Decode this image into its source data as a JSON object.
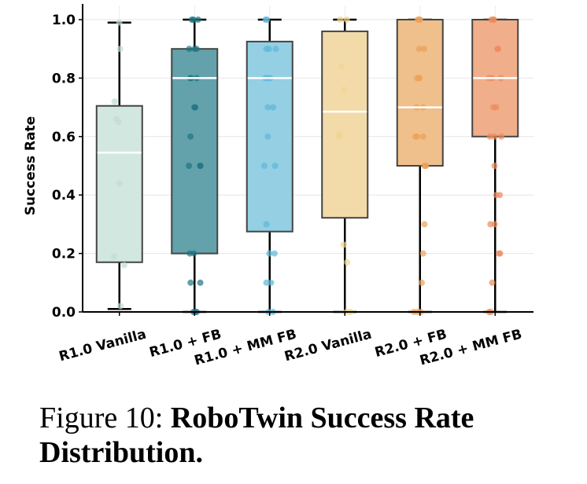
{
  "chart_data": {
    "type": "box",
    "title": "",
    "xlabel": "",
    "ylabel": "Success Rate",
    "ylim": [
      0,
      1.0
    ],
    "yticks": [
      "0.0",
      "0.2",
      "0.4",
      "0.6",
      "0.8",
      "1.0"
    ],
    "grid": true,
    "categories": [
      "R1.0 Vanilla",
      "R1.0 + FB",
      "R1.0 + MM FB",
      "R2.0 Vanilla",
      "R2.0 + FB",
      "R2.0 + MM FB"
    ],
    "boxes": [
      {
        "q1": 0.17,
        "median": 0.545,
        "q3": 0.705,
        "whisker_low": 0.01,
        "whisker_high": 0.99,
        "fill": "#d2e7df",
        "point_color": "#bfddd0",
        "points": [
          0.99,
          0.9,
          0.72,
          0.66,
          0.65,
          0.44,
          0.19,
          0.16,
          0.02
        ]
      },
      {
        "q1": 0.2,
        "median": 0.8,
        "q3": 0.9,
        "whisker_low": 0.0,
        "whisker_high": 1.0,
        "fill": "#64a2ab",
        "point_color": "#1d7583",
        "points": [
          1.0,
          1.0,
          1.0,
          0.9,
          0.9,
          0.9,
          0.8,
          0.8,
          0.8,
          0.7,
          0.7,
          0.6,
          0.5,
          0.5,
          0.5,
          0.2,
          0.2,
          0.1,
          0.1,
          0.0,
          0.0,
          0.0
        ]
      },
      {
        "q1": 0.275,
        "median": 0.8,
        "q3": 0.925,
        "whisker_low": 0.0,
        "whisker_high": 1.0,
        "fill": "#95cfe3",
        "point_color": "#5cb8d8",
        "points": [
          1.0,
          1.0,
          0.9,
          0.9,
          0.9,
          0.8,
          0.8,
          0.8,
          0.7,
          0.7,
          0.6,
          0.5,
          0.5,
          0.3,
          0.2,
          0.2,
          0.1,
          0.1,
          0.0,
          0.0
        ]
      },
      {
        "q1": 0.322,
        "median": 0.685,
        "q3": 0.96,
        "whisker_low": 0.0,
        "whisker_high": 1.0,
        "fill": "#f2dba9",
        "point_color": "#f0d591",
        "points": [
          1.0,
          1.0,
          0.84,
          0.76,
          0.61,
          0.6,
          0.23,
          0.17,
          0.0,
          0.0
        ]
      },
      {
        "q1": 0.5,
        "median": 0.7,
        "q3": 1.0,
        "whisker_low": 0.0,
        "whisker_high": 1.0,
        "fill": "#efc08b",
        "point_color": "#eba15a",
        "points": [
          1.0,
          1.0,
          1.0,
          0.9,
          0.9,
          0.8,
          0.8,
          0.8,
          0.7,
          0.7,
          0.6,
          0.6,
          0.6,
          0.5,
          0.5,
          0.5,
          0.3,
          0.2,
          0.1,
          0.0,
          0.0,
          0.0
        ]
      },
      {
        "q1": 0.6,
        "median": 0.8,
        "q3": 1.0,
        "whisker_low": 0.0,
        "whisker_high": 1.0,
        "fill": "#f0ae8b",
        "point_color": "#eb8a5d",
        "points": [
          1.0,
          1.0,
          1.0,
          0.9,
          0.9,
          0.8,
          0.8,
          0.8,
          0.7,
          0.7,
          0.6,
          0.6,
          0.6,
          0.5,
          0.4,
          0.4,
          0.3,
          0.3,
          0.2,
          0.2,
          0.1,
          0.0,
          0.0
        ]
      }
    ]
  },
  "caption": {
    "prefix": "Figure 10: ",
    "title": "RoboTwin Success Rate Distribution."
  }
}
